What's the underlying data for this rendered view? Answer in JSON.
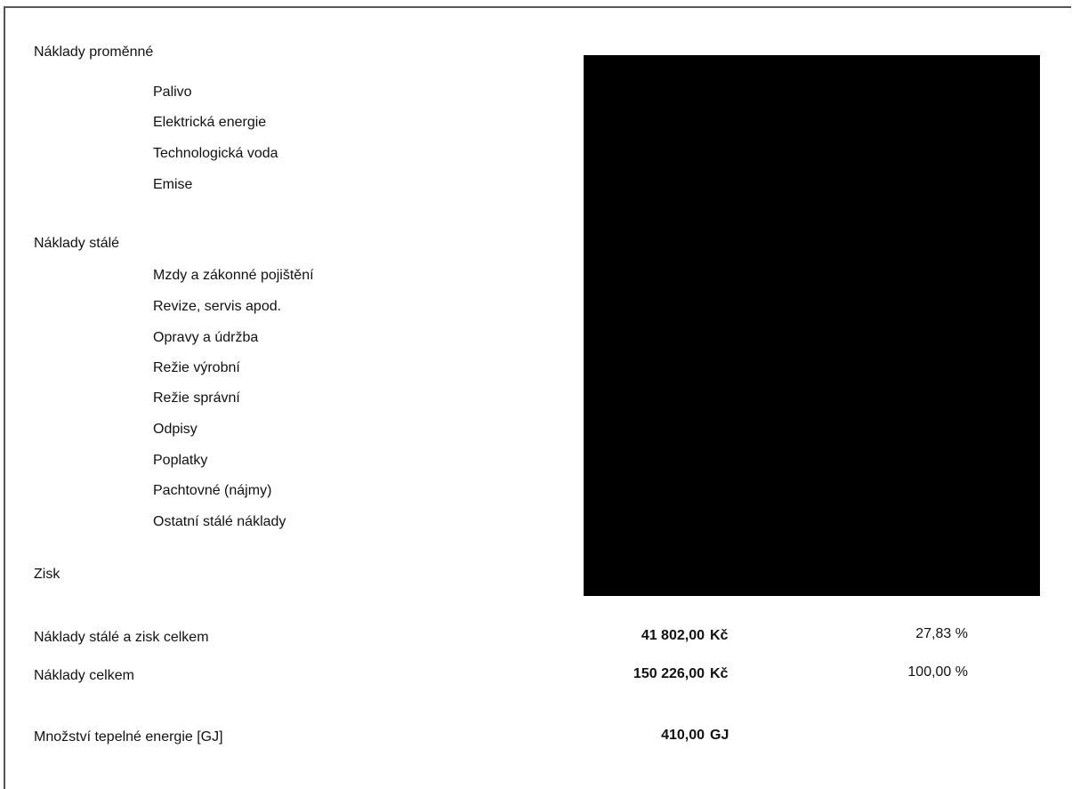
{
  "variable_costs": {
    "heading": "Náklady proměnné",
    "items": [
      "Palivo",
      "Elektrická energie",
      "Technologická voda",
      "Emise"
    ]
  },
  "fixed_costs": {
    "heading": "Náklady stálé",
    "items": [
      "Mzdy a zákonné pojištění",
      "Revize, servis apod.",
      "Opravy a údržba",
      "Režie výrobní",
      "Režie správní",
      "Odpisy",
      "Poplatky",
      "Pachtovné (nájmy)",
      "Ostatní stálé náklady"
    ]
  },
  "profit": {
    "label": "Zisk"
  },
  "summary": [
    {
      "label": "Náklady stálé a zisk celkem",
      "amount": "41 802,00",
      "unit": "Kč",
      "percent": "27,83 %"
    },
    {
      "label": "Náklady celkem",
      "amount": "150 226,00",
      "unit": "Kč",
      "percent": "100,00 %"
    }
  ],
  "heat_energy": {
    "label": "Množství tepelné energie [GJ]",
    "amount": "410,00",
    "unit": "GJ"
  }
}
